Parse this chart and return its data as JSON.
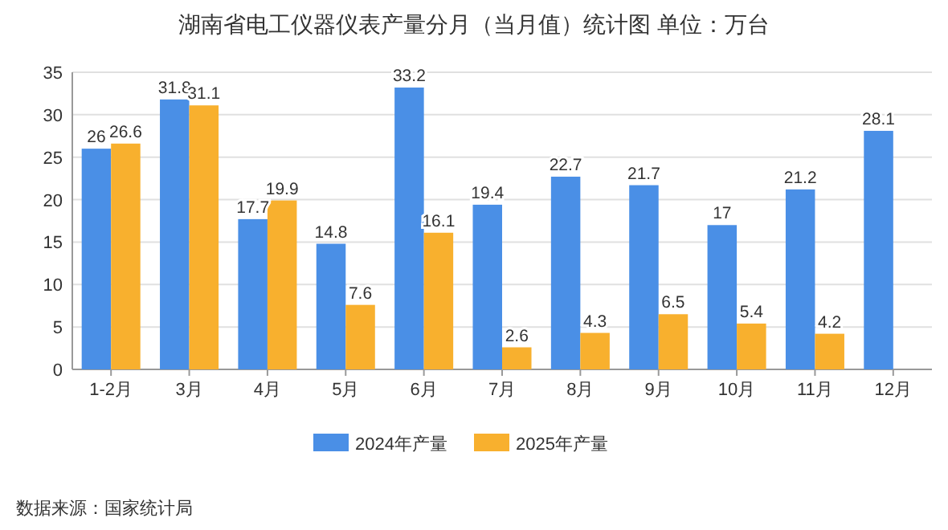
{
  "chart_data": {
    "type": "bar",
    "title": "湖南省电工仪器仪表产量分月（当月值）统计图 单位：万台",
    "categories": [
      "1-2月",
      "3月",
      "4月",
      "5月",
      "6月",
      "7月",
      "8月",
      "9月",
      "10月",
      "11月",
      "12月"
    ],
    "series": [
      {
        "name": "2024年产量",
        "color": "#4a8fe6",
        "values": [
          26,
          31.8,
          17.7,
          14.8,
          33.2,
          19.4,
          22.7,
          21.7,
          17,
          21.2,
          28.1
        ]
      },
      {
        "name": "2025年产量",
        "color": "#f8b02e",
        "values": [
          26.6,
          31.1,
          19.9,
          7.6,
          16.1,
          2.6,
          4.3,
          6.5,
          5.4,
          4.2,
          null
        ]
      }
    ],
    "ylim": [
      0,
      35
    ],
    "yticks": [
      0,
      5,
      10,
      15,
      20,
      25,
      30,
      35
    ],
    "grid": "y",
    "legend": "bottom",
    "data_labels": true,
    "annotations": [
      "数据来源：国家统计局"
    ]
  }
}
